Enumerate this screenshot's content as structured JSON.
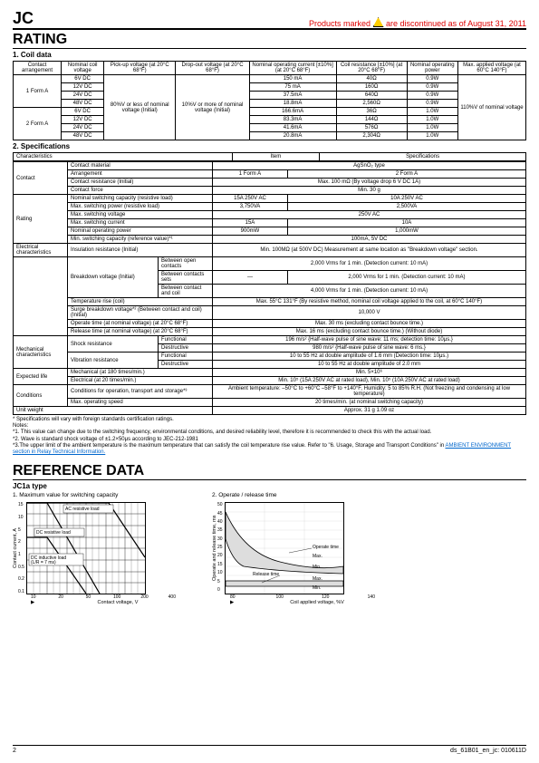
{
  "header": {
    "code": "JC",
    "disc_prefix": "Products marked",
    "disc_suffix": "are discontinued as of August 31, 2011"
  },
  "rating": {
    "title": "RATING",
    "sub1": "1. Coil data",
    "coil_headers": [
      "Contact arrangement",
      "Nominal coil voltage",
      "Pick-up voltage (at 20°C 68°F)",
      "Drop-out voltage (at 20°C 68°F)",
      "Nominal operating current [±10%] (at 20°C 68°F)",
      "Coil resistance [±10%] (at 20°C 68°F)",
      "Nominal operating power",
      "Max. applied voltage (at 60°C 140°F)"
    ],
    "pickup_merged": "80%V or less of nominal voltage (Initial)",
    "dropout_merged": "10%V or more of nominal voltage (Initial)",
    "max_applied_merged": "110%V of nominal voltage",
    "form1": "1 Form A",
    "form2": "2 Form A",
    "rows1": [
      {
        "v": "6V DC",
        "cur": "150   mA",
        "res": "40Ω",
        "pow": "0.9W"
      },
      {
        "v": "12V DC",
        "cur": "75   mA",
        "res": "160Ω",
        "pow": "0.9W"
      },
      {
        "v": "24V DC",
        "cur": "37.5mA",
        "res": "640Ω",
        "pow": "0.9W"
      },
      {
        "v": "48V DC",
        "cur": "18.8mA",
        "res": "2,560Ω",
        "pow": "0.9W"
      }
    ],
    "rows2": [
      {
        "v": "6V DC",
        "cur": "166.6mA",
        "res": "36Ω",
        "pow": "1.0W"
      },
      {
        "v": "12V DC",
        "cur": "83.3mA",
        "res": "144Ω",
        "pow": "1.0W"
      },
      {
        "v": "24V DC",
        "cur": "41.6mA",
        "res": "576Ω",
        "pow": "1.0W"
      },
      {
        "v": "48V DC",
        "cur": "20.8mA",
        "res": "2,304Ω",
        "pow": "1.0W"
      }
    ],
    "sub2": "2. Specifications",
    "spec_head_item": "Item",
    "spec_head_spec": "Specifications",
    "spec_rows": [
      {
        "g": "Contact",
        "i": "Contact material",
        "c": [
          [
            "AgSnO₂ type",
            4
          ]
        ]
      },
      {
        "g": "",
        "i": "Arrangement",
        "c": [
          [
            "1 Form A",
            2
          ],
          [
            "2 Form A",
            2
          ]
        ]
      },
      {
        "g": "",
        "i": "Contact resistance (Initial)",
        "c": [
          [
            "Max. 100 mΩ (By voltage drop 6 V DC 1A)",
            4
          ]
        ]
      },
      {
        "g": "",
        "i": "Contact force",
        "c": [
          [
            "Min. 30 g",
            4
          ]
        ]
      },
      {
        "g": "Rating",
        "i": "Nominal switching capacity (resistive load)",
        "c": [
          [
            "15A 250V AC",
            2
          ],
          [
            "10A 250V AC",
            2
          ]
        ]
      },
      {
        "g": "",
        "i": "Max. switching power (resistive load)",
        "c": [
          [
            "3,750VA",
            2
          ],
          [
            "2,500VA",
            2
          ]
        ]
      },
      {
        "g": "",
        "i": "Max. switching voltage",
        "c": [
          [
            "250V AC",
            4
          ]
        ]
      },
      {
        "g": "",
        "i": "Max. switching current",
        "c": [
          [
            "15A",
            2
          ],
          [
            "10A",
            2
          ]
        ]
      },
      {
        "g": "",
        "i": "Nominal operating power",
        "c": [
          [
            "900mW",
            2
          ],
          [
            "1,000mW",
            2
          ]
        ]
      },
      {
        "g": "",
        "i": "Min. switching capacity (reference value)*¹",
        "c": [
          [
            "100mA, 5V DC",
            4
          ]
        ]
      },
      {
        "g": "Electrical characteristics",
        "i": "Insulation resistance (Initial)",
        "c": [
          [
            "Min. 100MΩ (at 500V DC) Measurement at same location as \"Breakdown voltage\" section.",
            4
          ]
        ]
      }
    ],
    "breakdown_label": "Breakdown voltage (Initial)",
    "breakdown_rows": [
      {
        "l": "Between open contacts",
        "c": [
          [
            "2,000 Vrms for 1 min. (Detection current: 10 mA)",
            4
          ]
        ]
      },
      {
        "l": "Between contacts sets",
        "c": [
          [
            "—",
            2
          ],
          [
            "2,000 Vrms for 1 min. (Detection current: 10 mA)",
            2
          ]
        ]
      },
      {
        "l": "Between contact and coil",
        "c": [
          [
            "4,000 Vrms for 1 min. (Detection current: 10 mA)",
            4
          ]
        ]
      }
    ],
    "after_breakdown": [
      {
        "i": "Temperature rise (coil)",
        "c": [
          [
            "Max. 55°C 131°F (By resistive method, nominal coil voltage applied to the coil, at 60°C 140°F)",
            4
          ]
        ]
      },
      {
        "i": "Surge breakdown voltage*² (Between contact and coil) (Initial)",
        "c": [
          [
            "10,000 V",
            4
          ]
        ]
      },
      {
        "i": "Operate time (at nominal voltage) (at 20°C 68°F)",
        "c": [
          [
            "Max. 30 ms (excluding contact bounce time.)",
            4
          ]
        ]
      },
      {
        "i": "Release time (at nominal voltage) (at 20°C 68°F)",
        "c": [
          [
            "Max. 16 ms (excluding contact bounce time.) (Without diode)",
            4
          ]
        ]
      }
    ],
    "mech": [
      {
        "g": "Mechanical characteristics",
        "i": "Shock resistance",
        "s": "Functional",
        "c": [
          [
            "196 m/s² {Half-wave pulse of sine wave: 11 ms; detection time: 10μs.}",
            4
          ]
        ]
      },
      {
        "g": "",
        "i": "",
        "s": "Destructive",
        "c": [
          [
            "980 m/s² {Half-wave pulse of sine wave: 6 ms.}",
            4
          ]
        ]
      },
      {
        "g": "",
        "i": "Vibration resistance",
        "s": "Functional",
        "c": [
          [
            "10 to 55 Hz at double amplitude of 1.6 mm (Detection time: 10μs.)",
            4
          ]
        ]
      },
      {
        "g": "",
        "i": "",
        "s": "Destructive",
        "c": [
          [
            "10 to 55 Hz at double amplitude of 2.0 mm",
            4
          ]
        ]
      }
    ],
    "life": [
      {
        "g": "Expected life",
        "i": "Mechanical (at 180 times/min.)",
        "c": [
          [
            "Min. 5×10⁶",
            4
          ]
        ]
      },
      {
        "g": "",
        "i": "Electrical (at 20 times/min.)",
        "c": [
          [
            "Min. 10⁵ (15A 250V AC at rated load), Min. 10⁵ (10A 250V AC at rated load)",
            4
          ]
        ]
      }
    ],
    "cond": [
      {
        "g": "Conditions",
        "i": "Conditions for operation, transport and storage*³",
        "c": [
          [
            "Ambient temperature: –50°C to +60°C –58°F to +140°F, Humidity: 5 to 85% R.H. (Not freezing and condensing at low temperature)",
            4
          ]
        ]
      },
      {
        "g": "",
        "i": "Max. operating speed",
        "c": [
          [
            "20 times/min. (at nominal switching capacity)",
            4
          ]
        ]
      }
    ],
    "weight": {
      "g": "Unit weight",
      "c": "Approx. 31 g 1.09 oz"
    }
  },
  "notes": {
    "l0": "*   Specifications will vary with foreign standards certification ratings.",
    "l1": "Notes:",
    "l2": "*1. This value can change due to the switching frequency, environmental conditions, and desired reliability level, therefore it is recommended to check this with the actual load.",
    "l3": "*2. Wave is standard shock voltage of ±1.2×50μs according to JEC-212-1981",
    "l4": "*3.The upper limit of the ambient temperature is the maximum temperature that can satisfy the coil temperature rise value. Refer to \"6. Usage, Storage and Transport Conditions\" in ",
    "l4link": "AMBIENT ENVIRONMENT section in Relay Technical Information."
  },
  "reference": {
    "title": "REFERENCE DATA",
    "type": "JC1a type",
    "chart1_title": "1. Maximum value for switching capacity",
    "chart2_title": "2. Operate / release time",
    "chart1": {
      "ylabel": "Contact current, A",
      "xlabel": "Contact voltage, V",
      "yticks": [
        "0.1",
        "0.2",
        "0.5",
        "1",
        "2",
        "5",
        "10",
        "15"
      ],
      "xticks": [
        "10",
        "20",
        "50",
        "100",
        "200",
        "400"
      ],
      "legend": [
        "AC resistive load",
        "DC resistive load",
        "DC inductive load (L/R = 7 ms)"
      ]
    },
    "chart2": {
      "ylabel": "Operate and release time, ms",
      "xlabel": "Coil applied voltage, %V",
      "yticks": [
        "0",
        "5",
        "10",
        "15",
        "20",
        "25",
        "30",
        "35",
        "40",
        "45",
        "50"
      ],
      "xticks": [
        "80",
        "100",
        "120",
        "140"
      ],
      "legend": [
        "Operate time",
        "Release time"
      ],
      "labels": [
        "Max.",
        "Min.",
        "Max.",
        "Min."
      ]
    }
  },
  "footer": {
    "page": "2",
    "doc": "ds_61B01_en_jc: 010611D"
  }
}
